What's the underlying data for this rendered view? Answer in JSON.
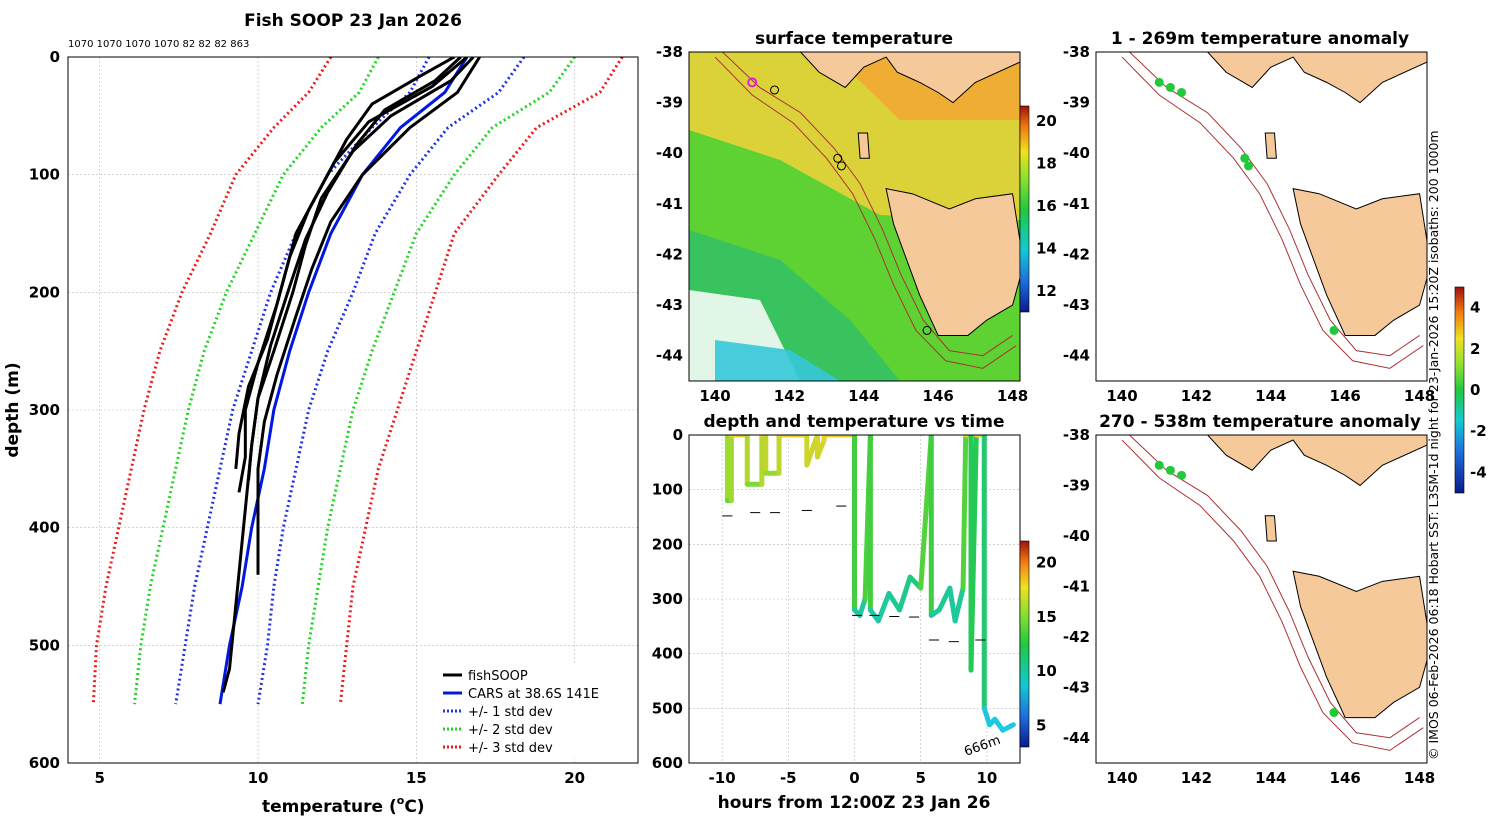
{
  "colors": {
    "land": "#f5c99a",
    "coast": "#000",
    "isobath": "#a33",
    "black": "#000",
    "blue": "#0018e0",
    "dotblue": "#1e32e6",
    "dotgreen": "#22d422",
    "dotred": "#ee1a1a",
    "marker": "#21c83a",
    "hiliteMarker": "#e020e0"
  },
  "chart_data": [
    {
      "type": "line",
      "title": "Fish SOOP 23 Jan 2026",
      "header_counts": "1070 1070 1070 1070 82 82 82 863",
      "xlabel": "temperature (",
      "xlabel_unit_sup": "o",
      "xlabel_unit": "C)",
      "ylabel": "depth (m)",
      "xlim": [
        4,
        22
      ],
      "ylim": [
        600,
        0
      ],
      "xticks": [
        "5",
        "10",
        "15",
        "20"
      ],
      "yticks": [
        "0",
        "100",
        "200",
        "300",
        "400",
        "500",
        "600"
      ],
      "legend": {
        "placement": "bottom-right",
        "entries": [
          "fishSOOP",
          "CARS at 38.6S 141E",
          "+/- 1 std dev",
          "+/- 2 std dev",
          "+/- 3 std dev"
        ]
      },
      "series": [
        {
          "name": "CARS at 38.6S 141E",
          "depth": [
            0,
            30,
            60,
            100,
            150,
            200,
            250,
            300,
            350,
            400,
            450,
            500,
            550
          ],
          "temp": [
            16.6,
            15.9,
            14.5,
            13.3,
            12.3,
            11.6,
            11.0,
            10.5,
            10.2,
            9.8,
            9.5,
            9.1,
            8.8
          ]
        },
        {
          "name": "+/- 1 std dev low",
          "depth": [
            0,
            30,
            60,
            100,
            150,
            200,
            250,
            300,
            350,
            400,
            450,
            500,
            550
          ],
          "temp": [
            15.4,
            14.8,
            13.6,
            12.2,
            11.2,
            10.4,
            9.8,
            9.2,
            8.8,
            8.4,
            8.0,
            7.7,
            7.4
          ]
        },
        {
          "name": "+/- 1 std dev high",
          "depth": [
            0,
            30,
            60,
            100,
            150,
            200,
            250,
            300,
            350,
            400,
            450,
            500,
            550
          ],
          "temp": [
            18.4,
            17.6,
            16.0,
            14.8,
            13.7,
            13.0,
            12.2,
            11.6,
            11.2,
            10.8,
            10.5,
            10.3,
            10.0
          ]
        },
        {
          "name": "+/- 2 std dev low",
          "depth": [
            0,
            30,
            60,
            100,
            150,
            200,
            250,
            300,
            350,
            400,
            450,
            500,
            550
          ],
          "temp": [
            13.8,
            13.2,
            12.0,
            10.8,
            9.9,
            9.0,
            8.3,
            7.8,
            7.4,
            7.0,
            6.6,
            6.3,
            6.1
          ]
        },
        {
          "name": "+/- 2 std dev high",
          "depth": [
            0,
            30,
            60,
            100,
            150,
            200,
            250,
            300,
            350,
            400,
            450,
            500,
            550
          ],
          "temp": [
            20.0,
            19.2,
            17.4,
            16.2,
            15.0,
            14.3,
            13.6,
            13.0,
            12.6,
            12.2,
            11.9,
            11.6,
            11.4
          ]
        },
        {
          "name": "+/- 3 std dev low",
          "depth": [
            0,
            30,
            60,
            100,
            150,
            200,
            250,
            300,
            350,
            400,
            450,
            500,
            550
          ],
          "temp": [
            12.3,
            11.6,
            10.5,
            9.3,
            8.5,
            7.6,
            6.9,
            6.4,
            6.0,
            5.6,
            5.2,
            4.9,
            4.8
          ]
        },
        {
          "name": "+/- 3 std dev high",
          "depth": [
            0,
            30,
            60,
            100,
            150,
            200,
            250,
            300,
            350,
            400,
            450,
            500,
            550
          ],
          "temp": [
            21.5,
            20.8,
            18.8,
            17.6,
            16.2,
            15.6,
            15.0,
            14.4,
            13.8,
            13.4,
            13.0,
            12.8,
            12.6
          ]
        },
        {
          "name": "fishSOOP",
          "casts": [
            {
              "depth": [
                0,
                20,
                50,
                80,
                120,
                160,
                200,
                250,
                290,
                330,
                360
              ],
              "temp": [
                16.8,
                16.1,
                14.2,
                13.0,
                12.0,
                11.5,
                11.1,
                10.5,
                10.0,
                9.8,
                9.7
              ]
            },
            {
              "depth": [
                0,
                25,
                55,
                90,
                130,
                170,
                210,
                260,
                300,
                340,
                370
              ],
              "temp": [
                16.6,
                15.5,
                13.5,
                12.4,
                11.6,
                11.0,
                10.6,
                10.0,
                9.6,
                9.6,
                9.4
              ]
            },
            {
              "depth": [
                0,
                15,
                40,
                70,
                110,
                150,
                190,
                240,
                280,
                320,
                350
              ],
              "temp": [
                16.2,
                15.2,
                13.6,
                12.8,
                12.0,
                11.2,
                10.8,
                10.3,
                9.7,
                9.4,
                9.3
              ]
            },
            {
              "depth": [
                0,
                30,
                60,
                100,
                140,
                180,
                220,
                270,
                310,
                350,
                440
              ],
              "temp": [
                17.0,
                16.3,
                14.8,
                13.3,
                12.3,
                11.7,
                11.2,
                10.6,
                10.2,
                10.0,
                10.0
              ]
            },
            {
              "depth": [
                0,
                20,
                45,
                75,
                115,
                155,
                195,
                245,
                290,
                330,
                520,
                530,
                540
              ],
              "temp": [
                16.4,
                15.6,
                14.0,
                13.1,
                12.2,
                11.5,
                11.0,
                10.4,
                10.0,
                9.8,
                9.1,
                9.0,
                8.9
              ]
            }
          ]
        }
      ]
    },
    {
      "type": "heatmap",
      "title": "surface temperature",
      "xlim": [
        139.3,
        148.2
      ],
      "ylim": [
        -44.5,
        -38
      ],
      "xticks": [
        "140",
        "142",
        "144",
        "146",
        "148"
      ],
      "yticks": [
        "-38",
        "-39",
        "-40",
        "-41",
        "-42",
        "-43",
        "-44"
      ],
      "colorbar": {
        "ticks": [
          "12",
          "14",
          "16",
          "18",
          "20"
        ],
        "range": [
          11,
          20.7
        ]
      },
      "track_points": [
        [
          141.0,
          -38.6
        ],
        [
          141.6,
          -38.75
        ],
        [
          143.3,
          -40.1
        ],
        [
          143.4,
          -40.25
        ],
        [
          145.7,
          -43.5
        ]
      ]
    },
    {
      "type": "scatter",
      "title": "depth and temperature vs time",
      "xlabel": "hours from 12:00Z 23 Jan 26",
      "xlim": [
        -12.5,
        12.5
      ],
      "ylim": [
        600,
        0
      ],
      "xticks": [
        "-10",
        "-5",
        "0",
        "5",
        "10"
      ],
      "yticks": [
        "0",
        "100",
        "200",
        "300",
        "400",
        "500",
        "600"
      ],
      "colorbar": {
        "ticks": [
          "5",
          "10",
          "15",
          "20"
        ],
        "range": [
          3,
          22
        ]
      },
      "annotation": "666m",
      "path": [
        [
          -9.6,
          0
        ],
        [
          -9.6,
          120
        ],
        [
          -9.3,
          120
        ],
        [
          -9.3,
          0
        ],
        [
          -8.1,
          0
        ],
        [
          -8.1,
          90
        ],
        [
          -7.0,
          90
        ],
        [
          -7.0,
          0
        ],
        [
          -6.7,
          0
        ],
        [
          -6.7,
          70
        ],
        [
          -5.7,
          70
        ],
        [
          -5.7,
          0
        ],
        [
          -3.6,
          0
        ],
        [
          -3.6,
          55
        ],
        [
          -2.8,
          0
        ],
        [
          -2.8,
          40
        ],
        [
          -2.3,
          10
        ],
        [
          -2.3,
          0
        ],
        [
          0.0,
          0
        ],
        [
          0.0,
          320
        ],
        [
          0.4,
          330
        ],
        [
          0.8,
          300
        ],
        [
          1.2,
          0
        ],
        [
          1.2,
          320
        ],
        [
          1.8,
          340
        ],
        [
          2.6,
          290
        ],
        [
          3.4,
          320
        ],
        [
          4.2,
          260
        ],
        [
          5.0,
          280
        ],
        [
          5.8,
          0
        ],
        [
          5.8,
          330
        ],
        [
          6.4,
          320
        ],
        [
          7.2,
          280
        ],
        [
          7.6,
          340
        ],
        [
          8.2,
          280
        ],
        [
          8.4,
          0
        ],
        [
          8.8,
          0
        ],
        [
          8.8,
          430
        ],
        [
          9.2,
          0
        ],
        [
          9.8,
          0
        ],
        [
          9.8,
          500
        ],
        [
          10.2,
          530
        ],
        [
          10.6,
          520
        ],
        [
          11.2,
          540
        ],
        [
          12.0,
          530
        ]
      ],
      "bottom_marks": [
        [
          -9.6,
          148
        ],
        [
          -7.5,
          142
        ],
        [
          -6.0,
          142
        ],
        [
          -3.6,
          138
        ],
        [
          -1.0,
          130
        ],
        [
          0.2,
          330
        ],
        [
          1.5,
          330
        ],
        [
          3.0,
          332
        ],
        [
          4.5,
          333
        ],
        [
          6.0,
          375
        ],
        [
          7.5,
          378
        ],
        [
          9.5,
          375
        ]
      ]
    },
    {
      "type": "scatter",
      "title": "1 - 269m temperature anomaly",
      "xlim": [
        139.3,
        148.2
      ],
      "ylim": [
        -44.5,
        -38
      ],
      "xticks": [
        "140",
        "142",
        "144",
        "146",
        "148"
      ],
      "yticks": [
        "-38",
        "-39",
        "-40",
        "-41",
        "-42",
        "-43",
        "-44"
      ],
      "points": [
        [
          141.0,
          -38.6
        ],
        [
          141.3,
          -38.7
        ],
        [
          141.6,
          -38.8
        ],
        [
          143.3,
          -40.1
        ],
        [
          143.4,
          -40.25
        ],
        [
          145.7,
          -43.5
        ]
      ]
    },
    {
      "type": "scatter",
      "title": "270 - 538m temperature anomaly",
      "xlim": [
        139.3,
        148.2
      ],
      "ylim": [
        -44.5,
        -38
      ],
      "xticks": [
        "140",
        "142",
        "144",
        "146",
        "148"
      ],
      "yticks": [
        "-38",
        "-39",
        "-40",
        "-41",
        "-42",
        "-43",
        "-44"
      ],
      "points": [
        [
          141.0,
          -38.6
        ],
        [
          141.3,
          -38.7
        ],
        [
          141.6,
          -38.8
        ],
        [
          145.7,
          -43.5
        ]
      ]
    }
  ],
  "anomaly_colorbar": {
    "ticks": [
      "4",
      "2",
      "0",
      "-2",
      "-4"
    ],
    "range": [
      -5,
      5
    ]
  },
  "side_caption": "© IMOS 06-Feb-2026 06:18 Hobart SST: L3SM-1d night for 23-Jan-2026 15:20Z isobaths: 200  1000m"
}
